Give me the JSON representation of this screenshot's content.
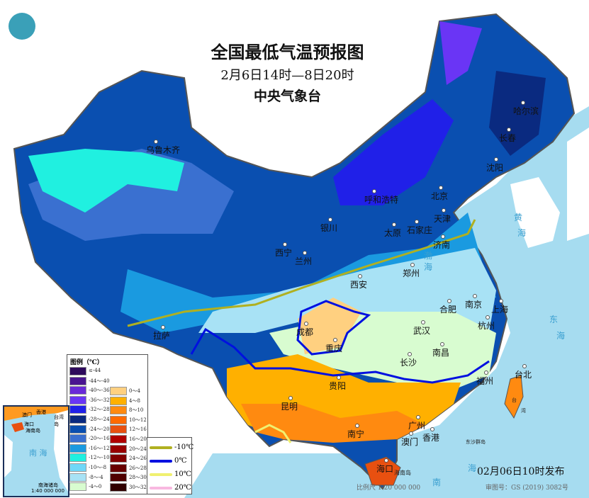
{
  "header": {
    "title": "全国最低气温预报图",
    "period": "2月6日14时—8日20时",
    "issuer": "中央气象台"
  },
  "cities": [
    "乌鲁木齐",
    "呼和浩特",
    "北京",
    "天津",
    "哈尔滨",
    "长春",
    "沈阳",
    "银川",
    "太原",
    "石家庄",
    "济南",
    "西宁",
    "兰州",
    "郑州",
    "西安",
    "拉萨",
    "成都",
    "重庆",
    "武汉",
    "合肥",
    "南京",
    "上海",
    "杭州",
    "南昌",
    "长沙",
    "贵阳",
    "福州",
    "台北",
    "昆明",
    "南宁",
    "广州",
    "香港",
    "澳门",
    "海口"
  ],
  "seas": [
    "渤",
    "海",
    "黄",
    "海",
    "东",
    "海",
    "南",
    "海",
    "台",
    "湾"
  ],
  "islands": {
    "hainan": "海南岛",
    "dongsha": "东沙群岛"
  },
  "legend": {
    "title": "图例（℃）",
    "cold": [
      {
        "label": "≤-44",
        "color": "#2e0a5c"
      },
      {
        "label": "-44～-40",
        "color": "#4a1590"
      },
      {
        "label": "-40～-36",
        "color": "#6a2ad8"
      },
      {
        "label": "-36～-32",
        "color": "#6a35f5"
      },
      {
        "label": "-32～-28",
        "color": "#2020e8"
      },
      {
        "label": "-28～-24",
        "color": "#0a2a80"
      },
      {
        "label": "-24～-20",
        "color": "#0a4fb0"
      },
      {
        "label": "-20～-16",
        "color": "#3a70d0"
      },
      {
        "label": "-16～-12",
        "color": "#1a9ae0"
      },
      {
        "label": "-12～-10",
        "color": "#20f0e0"
      },
      {
        "label": "-10～-8",
        "color": "#70d8f8"
      },
      {
        "label": "-8～-4",
        "color": "#a8e2f5"
      },
      {
        "label": "-4～0",
        "color": "#d8fcd0"
      }
    ],
    "warm": [
      {
        "label": "0～4",
        "color": "#ffd080"
      },
      {
        "label": "4～8",
        "color": "#ffb000"
      },
      {
        "label": "8～10",
        "color": "#ff8a10"
      },
      {
        "label": "10～12",
        "color": "#ff6a00"
      },
      {
        "label": "12～16",
        "color": "#e85010"
      },
      {
        "label": "16～20",
        "color": "#b00000"
      },
      {
        "label": "20～24",
        "color": "#980000"
      },
      {
        "label": "24～26",
        "color": "#800000"
      },
      {
        "label": "26～28",
        "color": "#680000"
      },
      {
        "label": "28～30",
        "color": "#500000"
      },
      {
        "label": "30～32",
        "color": "#300000"
      }
    ],
    "isotherms": [
      {
        "label": "-10℃",
        "color": "#b0b020"
      },
      {
        "label": "0℃",
        "color": "#0010e0"
      },
      {
        "label": "10℃",
        "color": "#f0f070"
      },
      {
        "label": "20℃",
        "color": "#f8b8e0"
      }
    ]
  },
  "inset": {
    "label": "南海诸岛",
    "scale": "1:40 000 000",
    "sea": "南 海",
    "places": [
      "海口",
      "海南岛",
      "台湾岛",
      "澳门",
      "香港"
    ]
  },
  "footer": {
    "issued": "02月06日10时发布",
    "scale": "比例尺 1:20 000 000",
    "review": "审图号：GS (2019) 3082号"
  }
}
